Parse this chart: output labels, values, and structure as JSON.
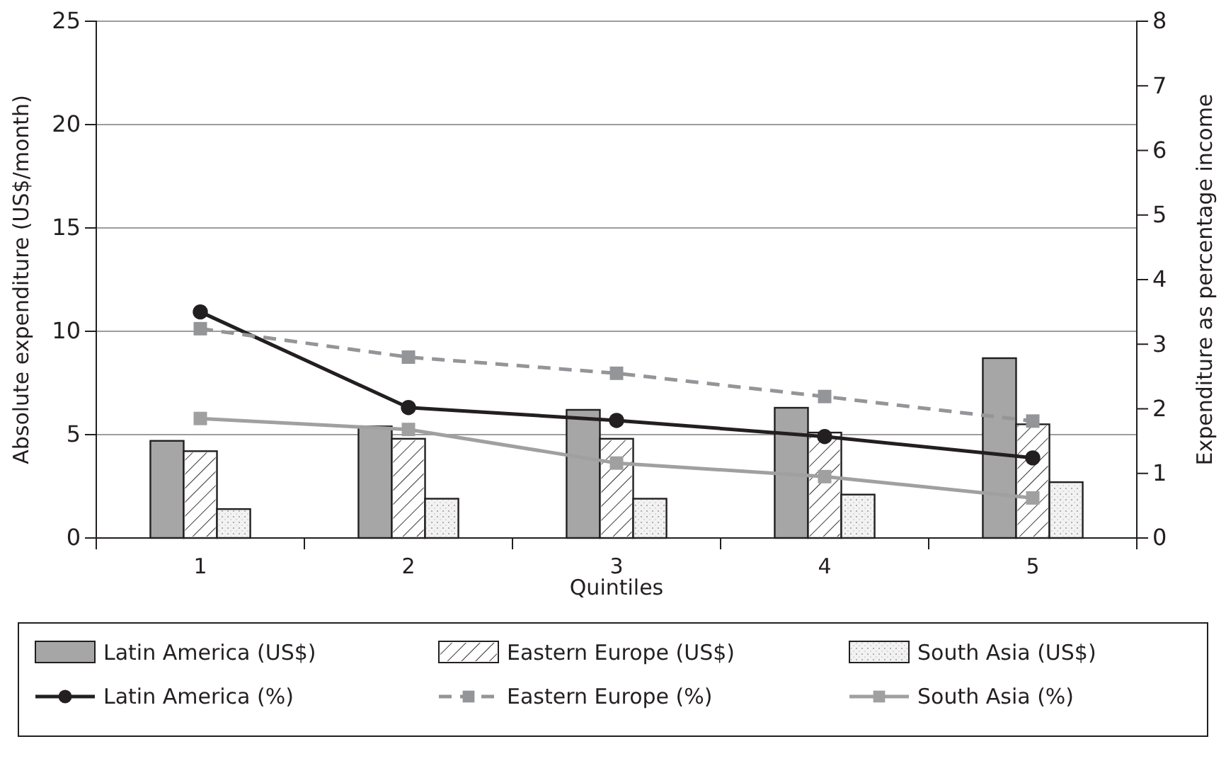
{
  "chart_data": {
    "type": "bar",
    "xlabel": "Quintiles",
    "ylabel": "Absolute expenditure (US$/month)",
    "y2label": "Expenditure as percentage income",
    "categories": [
      "1",
      "2",
      "3",
      "4",
      "5"
    ],
    "series": [
      {
        "name": "Latin America (US$)",
        "color": "#a6a6a6",
        "values": [
          4.7,
          5.4,
          6.2,
          6.3,
          8.7
        ]
      },
      {
        "name": "Eastern Europe (US$)",
        "color": "#ffffff",
        "values": [
          4.2,
          4.8,
          4.8,
          5.1,
          5.5
        ]
      },
      {
        "name": "South Asia (US$)",
        "color": "#f2f2f2",
        "values": [
          1.4,
          1.9,
          1.9,
          2.1,
          2.7
        ]
      },
      {
        "name": "Latin America (%)",
        "type": "line",
        "axis": "y2",
        "color": "#231f20",
        "marker": "circle",
        "line_style": "solid",
        "values": [
          3.5,
          2.02,
          1.82,
          1.57,
          1.24
        ]
      },
      {
        "name": "Eastern Europe (%)",
        "type": "line",
        "axis": "y2",
        "color": "#939598",
        "marker": "square",
        "line_style": "dashed",
        "values": [
          3.24,
          2.8,
          2.55,
          2.19,
          1.81
        ]
      },
      {
        "name": "South Asia (%)",
        "type": "line",
        "axis": "y2",
        "color": "#a0a0a0",
        "marker": "square",
        "line_style": "solid",
        "values": [
          1.85,
          1.68,
          1.16,
          0.95,
          0.62
        ]
      }
    ],
    "ylim": [
      0,
      25
    ],
    "yticks": [
      0,
      5,
      10,
      15,
      20,
      25
    ],
    "y2lim": [
      0,
      8
    ],
    "y2ticks": [
      0,
      1,
      2,
      3,
      4,
      5,
      6,
      7,
      8
    ],
    "grid": "y",
    "legend": "bottom"
  }
}
